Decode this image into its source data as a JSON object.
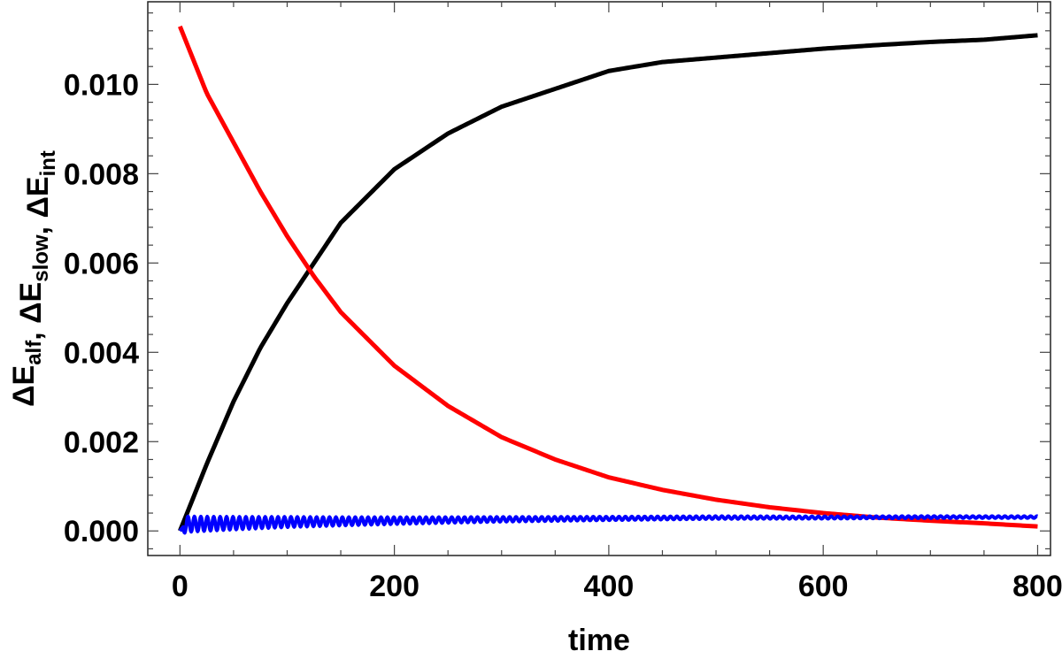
{
  "chart_data": {
    "type": "line",
    "xlabel": "time",
    "ylabel": {
      "parts": [
        {
          "text": "ΔE",
          "sub": "alf"
        },
        {
          "text": ", ΔE",
          "sub": "slow"
        },
        {
          "text": ", ΔE",
          "sub": "int"
        }
      ]
    },
    "xlim": [
      -30,
      812
    ],
    "ylim": [
      -0.00055,
      0.01185
    ],
    "x_ticks": [
      0,
      200,
      400,
      600,
      800
    ],
    "x_tick_labels": [
      "0",
      "200",
      "400",
      "600",
      "800"
    ],
    "y_ticks": [
      0.0,
      0.002,
      0.004,
      0.006,
      0.008,
      0.01
    ],
    "y_tick_labels": [
      "0.000",
      "0.002",
      "0.004",
      "0.006",
      "0.008",
      "0.010"
    ],
    "grid": false,
    "series": [
      {
        "color": "#000000",
        "x": [
          0,
          25,
          50,
          75,
          100,
          125,
          150,
          200,
          250,
          300,
          350,
          400,
          450,
          500,
          550,
          600,
          650,
          700,
          750,
          800
        ],
        "y": [
          0.0,
          0.0015,
          0.0029,
          0.0041,
          0.0051,
          0.006,
          0.0069,
          0.0081,
          0.0089,
          0.0095,
          0.0099,
          0.0103,
          0.0105,
          0.0106,
          0.0107,
          0.0108,
          0.01088,
          0.01095,
          0.011,
          0.0111
        ]
      },
      {
        "color": "#ff0000",
        "x": [
          0,
          25,
          50,
          75,
          100,
          125,
          150,
          200,
          250,
          300,
          350,
          400,
          450,
          500,
          550,
          600,
          650,
          700,
          750,
          800
        ],
        "y": [
          0.0113,
          0.0098,
          0.0087,
          0.0076,
          0.0066,
          0.0057,
          0.0049,
          0.0037,
          0.0028,
          0.0021,
          0.0016,
          0.0012,
          0.00092,
          0.0007,
          0.00053,
          0.0004,
          0.0003,
          0.00023,
          0.00017,
          0.0001
        ]
      },
      {
        "color": "#0000ff",
        "oscillating": true,
        "x": [
          0,
          5,
          100,
          200,
          300,
          400,
          500,
          600,
          700,
          800
        ],
        "y": [
          0.0,
          0.00015,
          0.0002,
          0.00023,
          0.00026,
          0.00028,
          0.0003,
          0.0003,
          0.00031,
          0.00031
        ],
        "oscillation_amplitude_start": 0.00016,
        "oscillation_amplitude_end": 2e-05,
        "oscillation_period": 6
      }
    ]
  }
}
